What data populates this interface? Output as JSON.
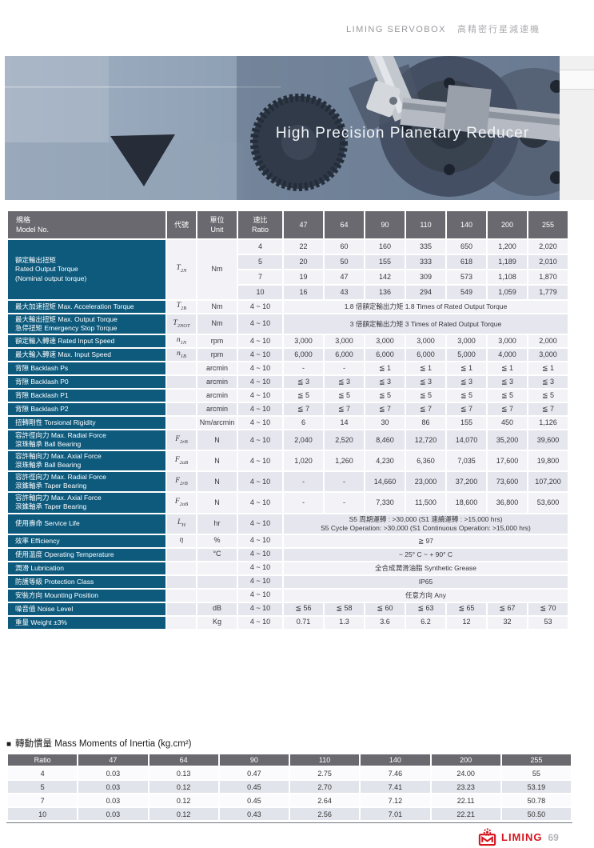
{
  "colors": {
    "accent_blue": "#0d5a7d",
    "header_gray": "#6a696f",
    "brand_red": "#d5151e"
  },
  "page_header": {
    "brand": "LIMING SERVOBOX",
    "brand_zh": "高精密行星減速機"
  },
  "hero": {
    "title": "High Precision Planetary Reducer"
  },
  "spec_table": {
    "header": {
      "model_zh": "規格",
      "model_en": "Model No.",
      "code": "代號",
      "unit_zh": "單位",
      "unit_en": "Unit",
      "ratio_zh": "速比",
      "ratio_en": "Ratio",
      "columns": [
        "47",
        "64",
        "90",
        "110",
        "140",
        "200",
        "255"
      ]
    },
    "rows": [
      {
        "type": "group",
        "label": [
          "額定輸出扭矩",
          "Rated Output Torque",
          "(Nominal output torque)"
        ],
        "code": "T",
        "sub": "2N",
        "unit": "Nm",
        "subrows": [
          {
            "ratio": "4",
            "values": [
              "22",
              "60",
              "160",
              "335",
              "650",
              "1,200",
              "2,020"
            ]
          },
          {
            "ratio": "5",
            "values": [
              "20",
              "50",
              "155",
              "333",
              "618",
              "1,189",
              "2,010"
            ]
          },
          {
            "ratio": "7",
            "values": [
              "19",
              "47",
              "142",
              "309",
              "573",
              "1,108",
              "1,870"
            ]
          },
          {
            "ratio": "10",
            "values": [
              "16",
              "43",
              "136",
              "294",
              "549",
              "1,059",
              "1,779"
            ]
          }
        ]
      },
      {
        "type": "span",
        "label": [
          "最大加速扭矩 Max. Acceleration Torque"
        ],
        "code": "T",
        "sub": "2B",
        "unit": "Nm",
        "ratio": "4 ~ 10",
        "span": [
          "1.8 倍額定輸出力矩  1.8 Times of Rated Output Torque"
        ]
      },
      {
        "type": "span",
        "label": [
          "最大輸出扭矩  Max. Output Torque",
          "急停扭矩  Emergency Stop Torque"
        ],
        "code": "T",
        "sub": "2NOT",
        "unit": "Nm",
        "ratio": "4 ~ 10",
        "span": [
          "3 倍額定輸出力矩  3 Times of Rated Output Torque"
        ]
      },
      {
        "type": "values",
        "label": [
          "額定輸入轉速  Rated Input Speed"
        ],
        "code": "n",
        "sub": "1N",
        "unit": "rpm",
        "ratio": "4 ~ 10",
        "values": [
          "3,000",
          "3,000",
          "3,000",
          "3,000",
          "3,000",
          "3,000",
          "2,000"
        ]
      },
      {
        "type": "values",
        "label": [
          "最大輸入轉速  Max. Input Speed"
        ],
        "code": "n",
        "sub": "1B",
        "unit": "rpm",
        "ratio": "4 ~ 10",
        "values": [
          "6,000",
          "6,000",
          "6,000",
          "6,000",
          "5,000",
          "4,000",
          "3,000"
        ]
      },
      {
        "type": "values",
        "label": [
          "背隙  Backlash Ps"
        ],
        "unit": "arcmin",
        "ratio": "4 ~ 10",
        "values": [
          "-",
          "-",
          "≦ 1",
          "≦ 1",
          "≦ 1",
          "≦ 1",
          "≦ 1"
        ]
      },
      {
        "type": "values",
        "label": [
          "背隙  Backlash P0"
        ],
        "unit": "arcmin",
        "ratio": "4 ~ 10",
        "values": [
          "≦ 3",
          "≦ 3",
          "≦ 3",
          "≦ 3",
          "≦ 3",
          "≦ 3",
          "≦ 3"
        ]
      },
      {
        "type": "values",
        "label": [
          "背隙  Backlash P1"
        ],
        "unit": "arcmin",
        "ratio": "4 ~ 10",
        "values": [
          "≦ 5",
          "≦ 5",
          "≦ 5",
          "≦ 5",
          "≦ 5",
          "≦ 5",
          "≦ 5"
        ]
      },
      {
        "type": "values",
        "label": [
          "背隙  Backlash P2"
        ],
        "unit": "arcmin",
        "ratio": "4 ~ 10",
        "values": [
          "≦ 7",
          "≦ 7",
          "≦ 7",
          "≦ 7",
          "≦ 7",
          "≦ 7",
          "≦ 7"
        ]
      },
      {
        "type": "values",
        "label": [
          "扭轉剛性  Torsional Rigidity"
        ],
        "unit": "Nm/arcmin",
        "ratio": "4 ~ 10",
        "values": [
          "6",
          "14",
          "30",
          "86",
          "155",
          "450",
          "1,126"
        ]
      },
      {
        "type": "values",
        "label": [
          "容許徑向力  Max. Radial Force",
          "滾珠軸承  Ball Bearing"
        ],
        "code": "F",
        "sub": "2rB",
        "unit": "N",
        "ratio": "4 ~ 10",
        "values": [
          "2,040",
          "2,520",
          "8,460",
          "12,720",
          "14,070",
          "35,200",
          "39,600"
        ]
      },
      {
        "type": "values",
        "label": [
          "容許軸向力  Max. Axial Force",
          "滾珠軸承  Ball Bearing"
        ],
        "code": "F",
        "sub": "2aB",
        "unit": "N",
        "ratio": "4 ~ 10",
        "values": [
          "1,020",
          "1,260",
          "4,230",
          "6,360",
          "7,035",
          "17,600",
          "19,800"
        ]
      },
      {
        "type": "values",
        "label": [
          "容許徑向力  Max. Radial Force",
          "滾錐軸承  Taper Bearing"
        ],
        "code": "F",
        "sub": "2rB",
        "unit": "N",
        "ratio": "4 ~ 10",
        "values": [
          "-",
          "-",
          "14,660",
          "23,000",
          "37,200",
          "73,600",
          "107,200"
        ]
      },
      {
        "type": "values",
        "label": [
          "容許軸向力  Max. Axial Force",
          "滾錐軸承  Taper Bearing"
        ],
        "code": "F",
        "sub": "2aB",
        "unit": "N",
        "ratio": "4 ~ 10",
        "values": [
          "-",
          "-",
          "7,330",
          "11,500",
          "18,600",
          "36,800",
          "53,600"
        ]
      },
      {
        "type": "span",
        "label": [
          "使用壽命  Service Life"
        ],
        "code": "L",
        "sub": "H",
        "unit": "hr",
        "ratio": "4 ~ 10",
        "span": [
          "S5 周期運轉 : >30,000 (S1 連續運轉 : >15,000 hrs)",
          "S5 Cycle Operation: >30,000 (S1 Continuous Operation: >15,000 hrs)"
        ]
      },
      {
        "type": "span",
        "label": [
          "效率  Efficiency"
        ],
        "code": "η",
        "unit": "%",
        "ratio": "4 ~ 10",
        "span": [
          "≧ 97"
        ]
      },
      {
        "type": "span",
        "label": [
          "使用溫度  Operating Temperature"
        ],
        "unit": "°C",
        "ratio": "4 ~ 10",
        "span": [
          "− 25° C  ~  + 90° C"
        ]
      },
      {
        "type": "span",
        "label": [
          "潤滑  Lubrication"
        ],
        "ratio": "4 ~ 10",
        "span": [
          "全合成潤滑油脂  Synthetic Grease"
        ]
      },
      {
        "type": "span",
        "label": [
          "防護等級  Protection Class"
        ],
        "ratio": "4 ~ 10",
        "span": [
          "IP65"
        ]
      },
      {
        "type": "span",
        "label": [
          "安裝方向  Mounting Position"
        ],
        "ratio": "4 ~ 10",
        "span": [
          "任意方向  Any"
        ]
      },
      {
        "type": "values",
        "label": [
          "噪音值  Noise Level"
        ],
        "unit": "dB",
        "ratio": "4 ~ 10",
        "values": [
          "≦ 56",
          "≦ 58",
          "≦ 60",
          "≦ 63",
          "≦ 65",
          "≦ 67",
          "≦ 70"
        ]
      },
      {
        "type": "values",
        "label": [
          "重量  Weight  ±3%"
        ],
        "unit": "Kg",
        "ratio": "4 ~ 10",
        "values": [
          "0.71",
          "1.3",
          "3.6",
          "6.2",
          "12",
          "32",
          "53"
        ]
      }
    ]
  },
  "inertia_table": {
    "bullet": "■",
    "title": "轉動慣量 Mass Moments of Inertia (kg.cm²)",
    "headers": [
      "Ratio",
      "47",
      "64",
      "90",
      "110",
      "140",
      "200",
      "255"
    ],
    "rows": [
      [
        "4",
        "0.03",
        "0.13",
        "0.47",
        "2.75",
        "7.46",
        "24.00",
        "55"
      ],
      [
        "5",
        "0.03",
        "0.12",
        "0.45",
        "2.70",
        "7.41",
        "23.23",
        "53.19"
      ],
      [
        "7",
        "0.03",
        "0.12",
        "0.45",
        "2.64",
        "7.12",
        "22.11",
        "50.78"
      ],
      [
        "10",
        "0.03",
        "0.12",
        "0.43",
        "2.56",
        "7.01",
        "22.21",
        "50.50"
      ]
    ]
  },
  "footer": {
    "brand": "LIMING",
    "page_number": "69"
  }
}
